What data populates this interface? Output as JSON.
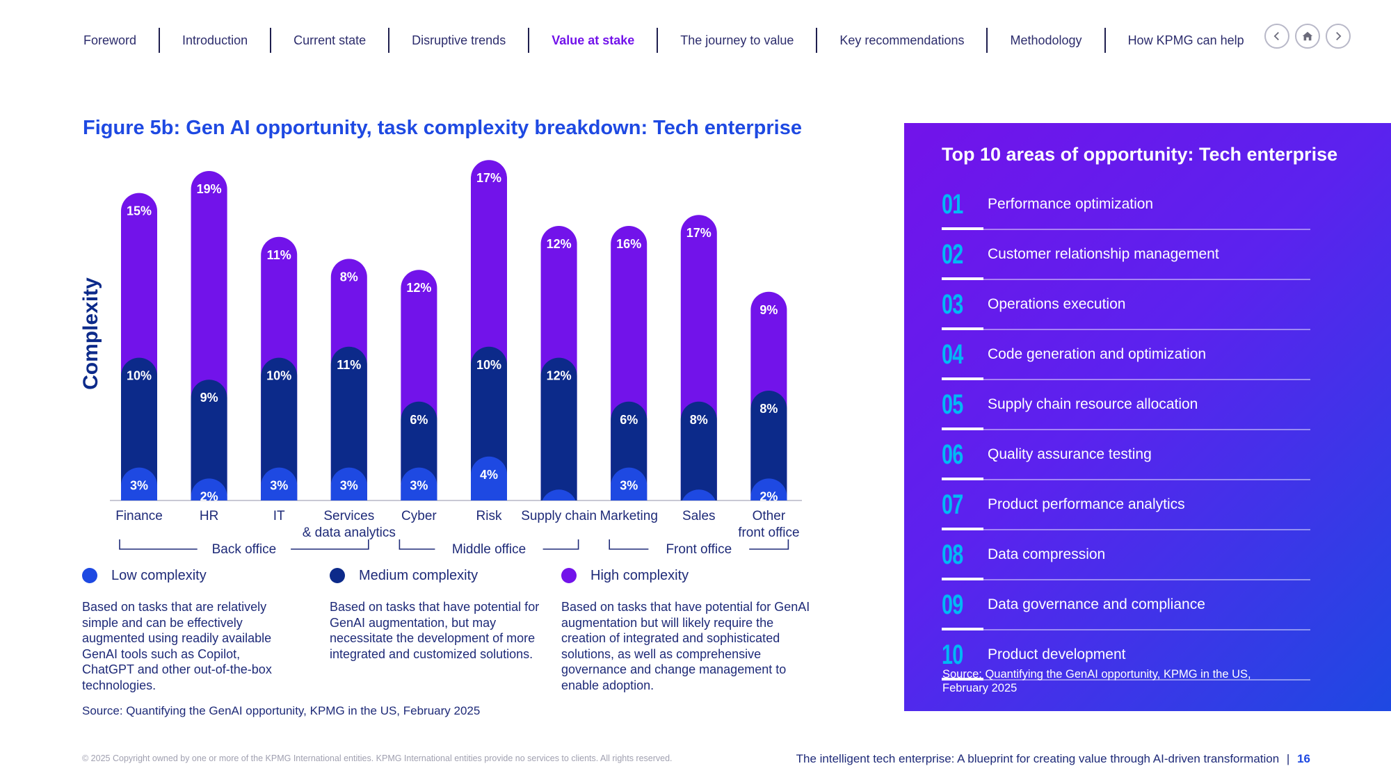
{
  "nav": {
    "items": [
      "Foreword",
      "Introduction",
      "Current state",
      "Disruptive trends",
      "Value at stake",
      "The journey to value",
      "Key recommendations",
      "Methodology",
      "How KPMG can help"
    ],
    "active_index": 4,
    "controls": [
      {
        "name": "prev-page-button",
        "icon": "chevron-left-icon"
      },
      {
        "name": "home-button",
        "icon": "home-icon"
      },
      {
        "name": "next-page-button",
        "icon": "chevron-right-icon"
      }
    ]
  },
  "figure": {
    "title": "Figure 5b: Gen AI opportunity, task complexity breakdown: Tech enterprise"
  },
  "chart_data": {
    "type": "bar",
    "stacked": true,
    "ylabel": "Complexity",
    "categories": [
      "Finance",
      "HR",
      "IT",
      "Services\n& data analytics",
      "Cyber",
      "Risk",
      "Supply chain",
      "Marketing",
      "Sales",
      "Other\nfront office"
    ],
    "series": [
      {
        "name": "Low complexity",
        "color": "#1e49e2",
        "values": [
          3,
          2,
          3,
          3,
          3,
          4,
          1,
          3,
          1,
          2
        ]
      },
      {
        "name": "Medium complexity",
        "color": "#0c2a8a",
        "values": [
          10,
          9,
          10,
          11,
          6,
          10,
          12,
          6,
          8,
          8
        ]
      },
      {
        "name": "High complexity",
        "color": "#7213ea",
        "values": [
          15,
          19,
          11,
          8,
          12,
          17,
          12,
          16,
          17,
          9
        ]
      }
    ],
    "groups": [
      {
        "label": "Back office",
        "from": 0,
        "to": 3
      },
      {
        "label": "Middle office",
        "from": 4,
        "to": 6
      },
      {
        "label": "Front office",
        "from": 7,
        "to": 9
      }
    ],
    "value_suffix": "%"
  },
  "legend": [
    {
      "label": "Low complexity",
      "color": "#1e49e2",
      "description": "Based on tasks that are relatively simple and can be effectively augmented using readily available GenAI tools such as Copilot, ChatGPT and other out-of-the-box technologies."
    },
    {
      "label": "Medium complexity",
      "color": "#0c2a8a",
      "description": "Based on tasks that have potential for GenAI augmentation, but may necessitate the development of more integrated and customized solutions."
    },
    {
      "label": "High complexity",
      "color": "#7213ea",
      "description": "Based on tasks that have potential for GenAI augmentation but will likely require the creation of integrated and sophisticated solutions, as well as comprehensive governance and change management to enable adoption."
    }
  ],
  "source_left": "Source: Quantifying the GenAI opportunity, KPMG in the US, February 2025",
  "panel": {
    "title": "Top 10 areas of opportunity: Tech enterprise",
    "items": [
      {
        "num": "01",
        "label": "Performance optimization"
      },
      {
        "num": "02",
        "label": "Customer relationship management"
      },
      {
        "num": "03",
        "label": "Operations execution"
      },
      {
        "num": "04",
        "label": "Code generation and optimization"
      },
      {
        "num": "05",
        "label": "Supply chain resource allocation"
      },
      {
        "num": "06",
        "label": "Quality assurance testing"
      },
      {
        "num": "07",
        "label": "Product performance analytics"
      },
      {
        "num": "08",
        "label": "Data compression"
      },
      {
        "num": "09",
        "label": "Data governance and compliance"
      },
      {
        "num": "10",
        "label": "Product development"
      }
    ],
    "source": "Source: Quantifying the GenAI opportunity, KPMG in the US, February 2025"
  },
  "footer": {
    "copyright": "© 2025 Copyright owned by one or more of the KPMG International entities. KPMG International entities provide no services to clients. All rights reserved.",
    "doc_title": "The intelligent tech enterprise: A blueprint for creating value through AI-driven transformation",
    "separator": "|",
    "page": "16"
  }
}
